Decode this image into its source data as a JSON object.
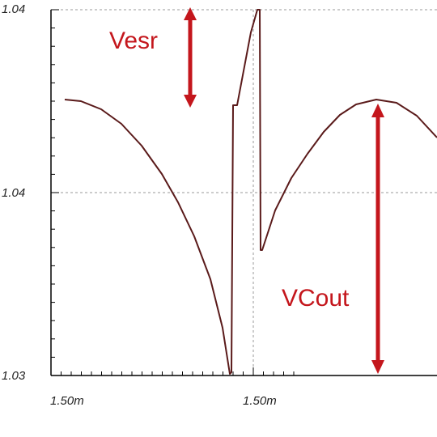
{
  "chart_data": {
    "type": "line",
    "title": "",
    "xlabel": "",
    "ylabel": "",
    "x_ticks": [
      "1.50m",
      "1.50m"
    ],
    "y_ticks": [
      "1.04",
      "1.04",
      "1.03"
    ],
    "grid": true,
    "colors": {
      "curve": "#5a1a1a",
      "annotation": "#c4161c",
      "grid": "#9a9a9a"
    },
    "annotations": [
      {
        "text": "Vesr"
      },
      {
        "text": "VCout"
      }
    ],
    "series": [
      {
        "points": [
          [
            80,
            123
          ],
          [
            100,
            125
          ],
          [
            125,
            135
          ],
          [
            150,
            153
          ],
          [
            175,
            180
          ],
          [
            200,
            215
          ],
          [
            220,
            250
          ],
          [
            240,
            292
          ],
          [
            260,
            345
          ],
          [
            275,
            405
          ],
          [
            284,
            462
          ],
          [
            286,
            460
          ],
          [
            288,
            130
          ],
          [
            293,
            130
          ],
          [
            310,
            40
          ],
          [
            318,
            12
          ],
          [
            321,
            12
          ],
          [
            322,
            309
          ],
          [
            324,
            309
          ],
          [
            340,
            260
          ],
          [
            360,
            220
          ],
          [
            380,
            190
          ],
          [
            400,
            163
          ],
          [
            420,
            142
          ],
          [
            440,
            129
          ],
          [
            465,
            123
          ],
          [
            490,
            127
          ],
          [
            515,
            143
          ],
          [
            540,
            170
          ]
        ]
      }
    ]
  }
}
